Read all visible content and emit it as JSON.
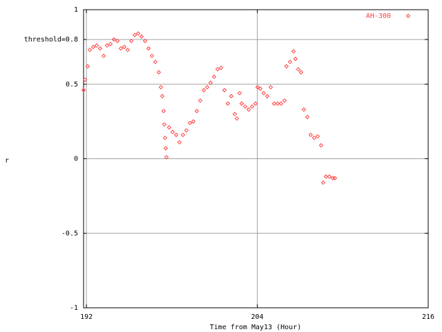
{
  "chart_data": {
    "type": "scatter",
    "x_label": "Time from May13 (Hour)",
    "y_label": "r",
    "xlim": [
      191.8,
      216
    ],
    "xticks": [
      192,
      204,
      216
    ],
    "ylim": [
      -1,
      1
    ],
    "yticks": [
      -1,
      -0.5,
      0,
      0.5,
      {
        "value": 0.8,
        "label": "threshold=0.8"
      },
      1
    ],
    "grid": true,
    "legend": "top-right",
    "x": [
      191.8,
      191.9,
      192.09,
      192.24,
      192.48,
      192.72,
      192.96,
      193.21,
      193.45,
      193.69,
      193.93,
      194.18,
      194.42,
      194.66,
      194.9,
      195.15,
      195.39,
      195.63,
      195.87,
      196.12,
      196.36,
      196.6,
      196.84,
      197.08,
      197.23,
      197.33,
      197.42,
      197.47,
      197.52,
      197.57,
      197.62,
      197.81,
      198.05,
      198.3,
      198.54,
      198.78,
      199.02,
      199.27,
      199.51,
      199.75,
      199.99,
      200.24,
      200.48,
      200.72,
      200.96,
      201.21,
      201.45,
      201.69,
      201.93,
      202.17,
      202.42,
      202.56,
      202.76,
      202.9,
      203.15,
      203.39,
      203.63,
      203.87,
      204.02,
      204.21,
      204.45,
      204.7,
      204.94,
      205.18,
      205.42,
      205.67,
      205.91,
      206.05,
      206.3,
      206.54,
      206.68,
      206.88,
      207.07,
      207.27,
      207.51,
      207.75,
      207.99,
      208.24,
      208.48,
      208.62,
      208.82,
      209.06,
      209.3,
      209.45
    ],
    "series": [
      {
        "name": "AH-300",
        "color": "#ff4040",
        "values": [
          0.46,
          0.53,
          0.62,
          0.73,
          0.75,
          0.76,
          0.74,
          0.69,
          0.76,
          0.77,
          0.8,
          0.79,
          0.74,
          0.75,
          0.73,
          0.79,
          0.83,
          0.84,
          0.82,
          0.79,
          0.74,
          0.69,
          0.65,
          0.58,
          0.48,
          0.42,
          0.32,
          0.23,
          0.14,
          0.07,
          0.01,
          0.21,
          0.18,
          0.16,
          0.11,
          0.16,
          0.19,
          0.24,
          0.25,
          0.32,
          0.39,
          0.46,
          0.48,
          0.51,
          0.55,
          0.6,
          0.61,
          0.46,
          0.37,
          0.42,
          0.3,
          0.27,
          0.44,
          0.37,
          0.35,
          0.33,
          0.35,
          0.37,
          0.48,
          0.47,
          0.44,
          0.42,
          0.48,
          0.37,
          0.37,
          0.37,
          0.39,
          0.62,
          0.65,
          0.72,
          0.67,
          0.6,
          0.58,
          0.33,
          0.28,
          0.16,
          0.14,
          0.15,
          0.09,
          -0.16,
          -0.12,
          -0.12,
          -0.13,
          -0.13
        ]
      }
    ]
  }
}
